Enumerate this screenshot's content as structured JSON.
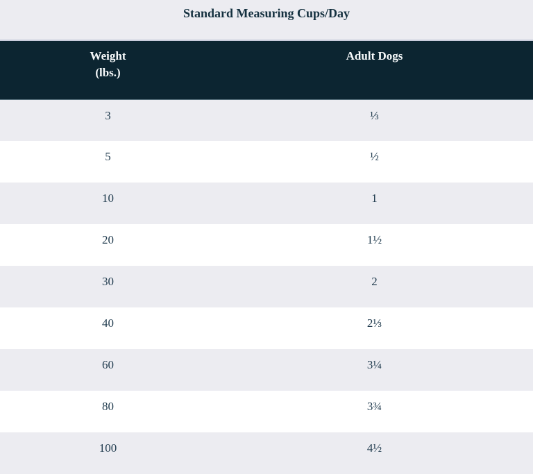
{
  "colors": {
    "page_background": "#ececf1",
    "header_bg": "#0c2531",
    "header_text": "#f7fafb",
    "row_stripe": "#ececf1",
    "row_white": "#ffffff",
    "cell_text": "#1f3a4d",
    "title_text": "#14303f",
    "header_top_border": "#c9ccdc",
    "header_bottom_border": "#566f7b"
  },
  "table": {
    "title": "Standard Measuring Cups/Day",
    "header": {
      "col1_line1": "Weight",
      "col1_line2": "(lbs.)",
      "col2": "Adult Dogs"
    },
    "rows": [
      {
        "weight": "3",
        "cups": "⅓"
      },
      {
        "weight": "5",
        "cups": "½"
      },
      {
        "weight": "10",
        "cups": "1"
      },
      {
        "weight": "20",
        "cups": "1½"
      },
      {
        "weight": "30",
        "cups": "2"
      },
      {
        "weight": "40",
        "cups": "2⅓"
      },
      {
        "weight": "60",
        "cups": "3¼"
      },
      {
        "weight": "80",
        "cups": "3¾"
      },
      {
        "weight": "100",
        "cups": "4½"
      }
    ]
  },
  "chart_data": {
    "type": "table",
    "title": "Standard Measuring Cups/Day",
    "columns": [
      "Weight (lbs.)",
      "Adult Dogs"
    ],
    "rows": [
      [
        "3",
        "⅓"
      ],
      [
        "5",
        "½"
      ],
      [
        "10",
        "1"
      ],
      [
        "20",
        "1½"
      ],
      [
        "30",
        "2"
      ],
      [
        "40",
        "2⅓"
      ],
      [
        "60",
        "3¼"
      ],
      [
        "80",
        "3¾"
      ],
      [
        "100",
        "4½"
      ]
    ]
  }
}
